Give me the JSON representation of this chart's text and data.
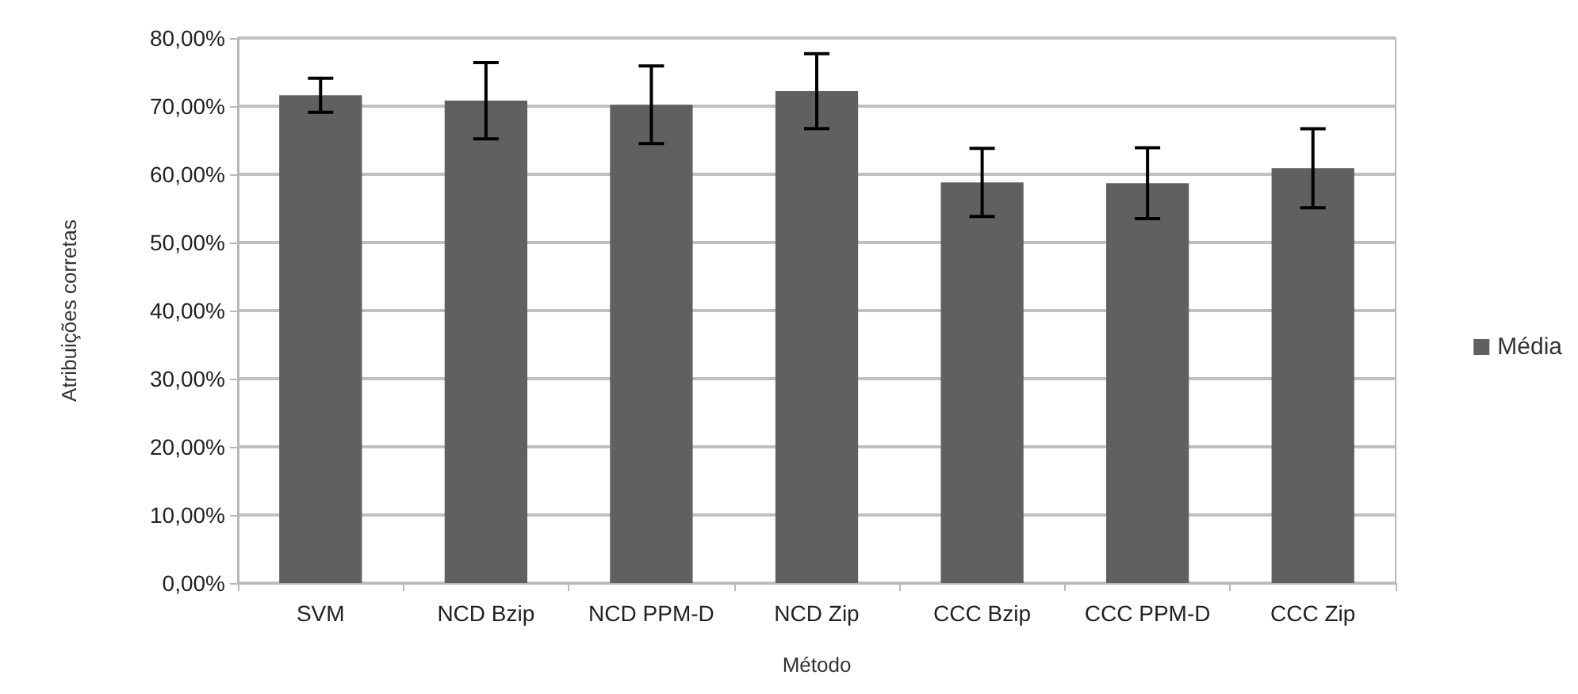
{
  "chart_data": {
    "type": "bar",
    "xlabel": "Método",
    "ylabel": "Atribuições corretas",
    "categories": [
      "SVM",
      "NCD Bzip",
      "NCD PPM-D",
      "NCD Zip",
      "CCC Bzip",
      "CCC PPM-D",
      "CCC Zip"
    ],
    "series": [
      {
        "name": "Média",
        "color": "#606060",
        "values": [
          71.6,
          70.8,
          70.2,
          72.2,
          58.8,
          58.7,
          60.9
        ],
        "errors": [
          2.5,
          5.6,
          5.7,
          5.5,
          5.0,
          5.2,
          5.8
        ]
      }
    ],
    "ylim": [
      0,
      80
    ],
    "yticks": [
      {
        "value": 0,
        "label": "0,00%"
      },
      {
        "value": 10,
        "label": "10,00%"
      },
      {
        "value": 20,
        "label": "20,00%"
      },
      {
        "value": 30,
        "label": "30,00%"
      },
      {
        "value": 40,
        "label": "40,00%"
      },
      {
        "value": 50,
        "label": "50,00%"
      },
      {
        "value": 60,
        "label": "60,00%"
      },
      {
        "value": 70,
        "label": "70,00%"
      },
      {
        "value": 80,
        "label": "80,00%"
      }
    ],
    "grid": "y",
    "legend": "right"
  }
}
